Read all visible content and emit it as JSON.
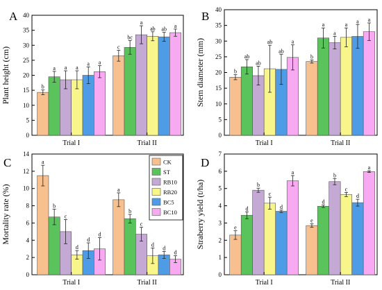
{
  "colors": {
    "CK": "#F8C08E",
    "ST": "#5BC35B",
    "RB10": "#C3A9D3",
    "RB20": "#F8F58A",
    "BC5": "#4F9CE6",
    "BC10": "#F7A9F1"
  },
  "legend": [
    "CK",
    "ST",
    "RB10",
    "RB20",
    "BC5",
    "BC10"
  ],
  "chart_data": [
    {
      "type": "bar",
      "panel": "A",
      "ylabel": "Plant height (cm)",
      "categories": [
        "Trial I",
        "Trial II"
      ],
      "ylim": [
        0,
        40
      ],
      "yticks": [
        "0",
        "5",
        "10",
        "15",
        "20",
        "25",
        "30",
        "35",
        "40"
      ],
      "series": [
        {
          "name": "CK",
          "values": [
            14.3,
            26.5
          ],
          "errors": [
            0.8,
            1.8
          ],
          "letters": [
            "b",
            "c"
          ]
        },
        {
          "name": "ST",
          "values": [
            19.5,
            29.3
          ],
          "errors": [
            1.8,
            2.3
          ],
          "letters": [
            "a",
            "bc"
          ]
        },
        {
          "name": "RB10",
          "values": [
            18.5,
            33.5
          ],
          "errors": [
            3.0,
            3.0
          ],
          "letters": [
            "a",
            "a"
          ]
        },
        {
          "name": "RB20",
          "values": [
            18.5,
            33.0
          ],
          "errors": [
            3.0,
            1.5
          ],
          "letters": [
            "a",
            "ab"
          ]
        },
        {
          "name": "BC5",
          "values": [
            20.0,
            32.8
          ],
          "errors": [
            2.8,
            1.5
          ],
          "letters": [
            "a",
            "ab"
          ]
        },
        {
          "name": "BC10",
          "values": [
            21.2,
            34.2
          ],
          "errors": [
            2.0,
            1.2
          ],
          "letters": [
            "a",
            "a"
          ]
        }
      ]
    },
    {
      "type": "bar",
      "panel": "B",
      "ylabel": "Stem diameter (mm)",
      "categories": [
        "Trial I",
        "Trial II"
      ],
      "ylim": [
        0,
        40
      ],
      "yticks": [
        "0",
        "5",
        "10",
        "15",
        "20",
        "25",
        "30",
        "35",
        "40"
      ],
      "series": [
        {
          "name": "CK",
          "values": [
            18.5,
            23.5
          ],
          "errors": [
            0.8,
            0.5
          ],
          "letters": [
            "b",
            "b"
          ]
        },
        {
          "name": "ST",
          "values": [
            21.8,
            31.0
          ],
          "errors": [
            2.3,
            3.2
          ],
          "letters": [
            "ab",
            "a"
          ]
        },
        {
          "name": "RB10",
          "values": [
            19.0,
            29.5
          ],
          "errors": [
            3.0,
            2.0
          ],
          "letters": [
            "ab",
            "a"
          ]
        },
        {
          "name": "RB20",
          "values": [
            21.2,
            31.2
          ],
          "errors": [
            7.5,
            3.0
          ],
          "letters": [
            "ab",
            "a"
          ]
        },
        {
          "name": "BC5",
          "values": [
            21.0,
            31.5
          ],
          "errors": [
            4.8,
            3.8
          ],
          "letters": [
            "ab",
            "a"
          ]
        },
        {
          "name": "BC10",
          "values": [
            24.8,
            33.0
          ],
          "errors": [
            4.0,
            2.8
          ],
          "letters": [
            "a",
            "a"
          ]
        }
      ]
    },
    {
      "type": "bar",
      "panel": "C",
      "ylabel": "Mortality rate (%)",
      "categories": [
        "Trial I",
        "Trial II"
      ],
      "ylim": [
        0,
        14
      ],
      "yticks": [
        "0",
        "2",
        "4",
        "6",
        "8",
        "10",
        "12",
        "14"
      ],
      "series": [
        {
          "name": "CK",
          "values": [
            11.5,
            8.7
          ],
          "errors": [
            1.2,
            0.8
          ],
          "letters": [
            "a",
            "a"
          ]
        },
        {
          "name": "ST",
          "values": [
            6.7,
            6.5
          ],
          "errors": [
            0.9,
            0.5
          ],
          "letters": [
            "b",
            "b"
          ]
        },
        {
          "name": "RB10",
          "values": [
            5.0,
            4.7
          ],
          "errors": [
            1.4,
            0.8
          ],
          "letters": [
            "c",
            "c"
          ]
        },
        {
          "name": "RB20",
          "values": [
            2.3,
            2.2
          ],
          "errors": [
            0.5,
            0.9
          ],
          "letters": [
            "d",
            "d"
          ]
        },
        {
          "name": "BC5",
          "values": [
            2.8,
            2.3
          ],
          "errors": [
            0.9,
            0.4
          ],
          "letters": [
            "d",
            "d"
          ]
        },
        {
          "name": "BC10",
          "values": [
            3.0,
            1.8
          ],
          "errors": [
            1.3,
            0.4
          ],
          "letters": [
            "d",
            "d"
          ]
        }
      ]
    },
    {
      "type": "bar",
      "panel": "D",
      "ylabel": "Straberry yield (t/ha)",
      "categories": [
        "Trial I",
        "Trial II"
      ],
      "ylim": [
        0,
        7
      ],
      "yticks": [
        "0",
        "1",
        "2",
        "3",
        "4",
        "5",
        "6",
        "7"
      ],
      "series": [
        {
          "name": "CK",
          "values": [
            2.3,
            2.85
          ],
          "errors": [
            0.25,
            0.1
          ],
          "letters": [
            "e",
            "e"
          ]
        },
        {
          "name": "ST",
          "values": [
            3.45,
            3.97
          ],
          "errors": [
            0.2,
            0.07
          ],
          "letters": [
            "d",
            "d"
          ]
        },
        {
          "name": "RB10",
          "values": [
            4.9,
            5.4
          ],
          "errors": [
            0.12,
            0.18
          ],
          "letters": [
            "b",
            "b"
          ]
        },
        {
          "name": "RB20",
          "values": [
            4.15,
            4.65
          ],
          "errors": [
            0.35,
            0.12
          ],
          "letters": [
            "c",
            "c"
          ]
        },
        {
          "name": "BC5",
          "values": [
            3.68,
            4.18
          ],
          "errors": [
            0.07,
            0.2
          ],
          "letters": [
            "d",
            "d"
          ]
        },
        {
          "name": "BC10",
          "values": [
            5.45,
            5.98
          ],
          "errors": [
            0.3,
            0.05
          ],
          "letters": [
            "a",
            "a"
          ]
        }
      ]
    }
  ]
}
